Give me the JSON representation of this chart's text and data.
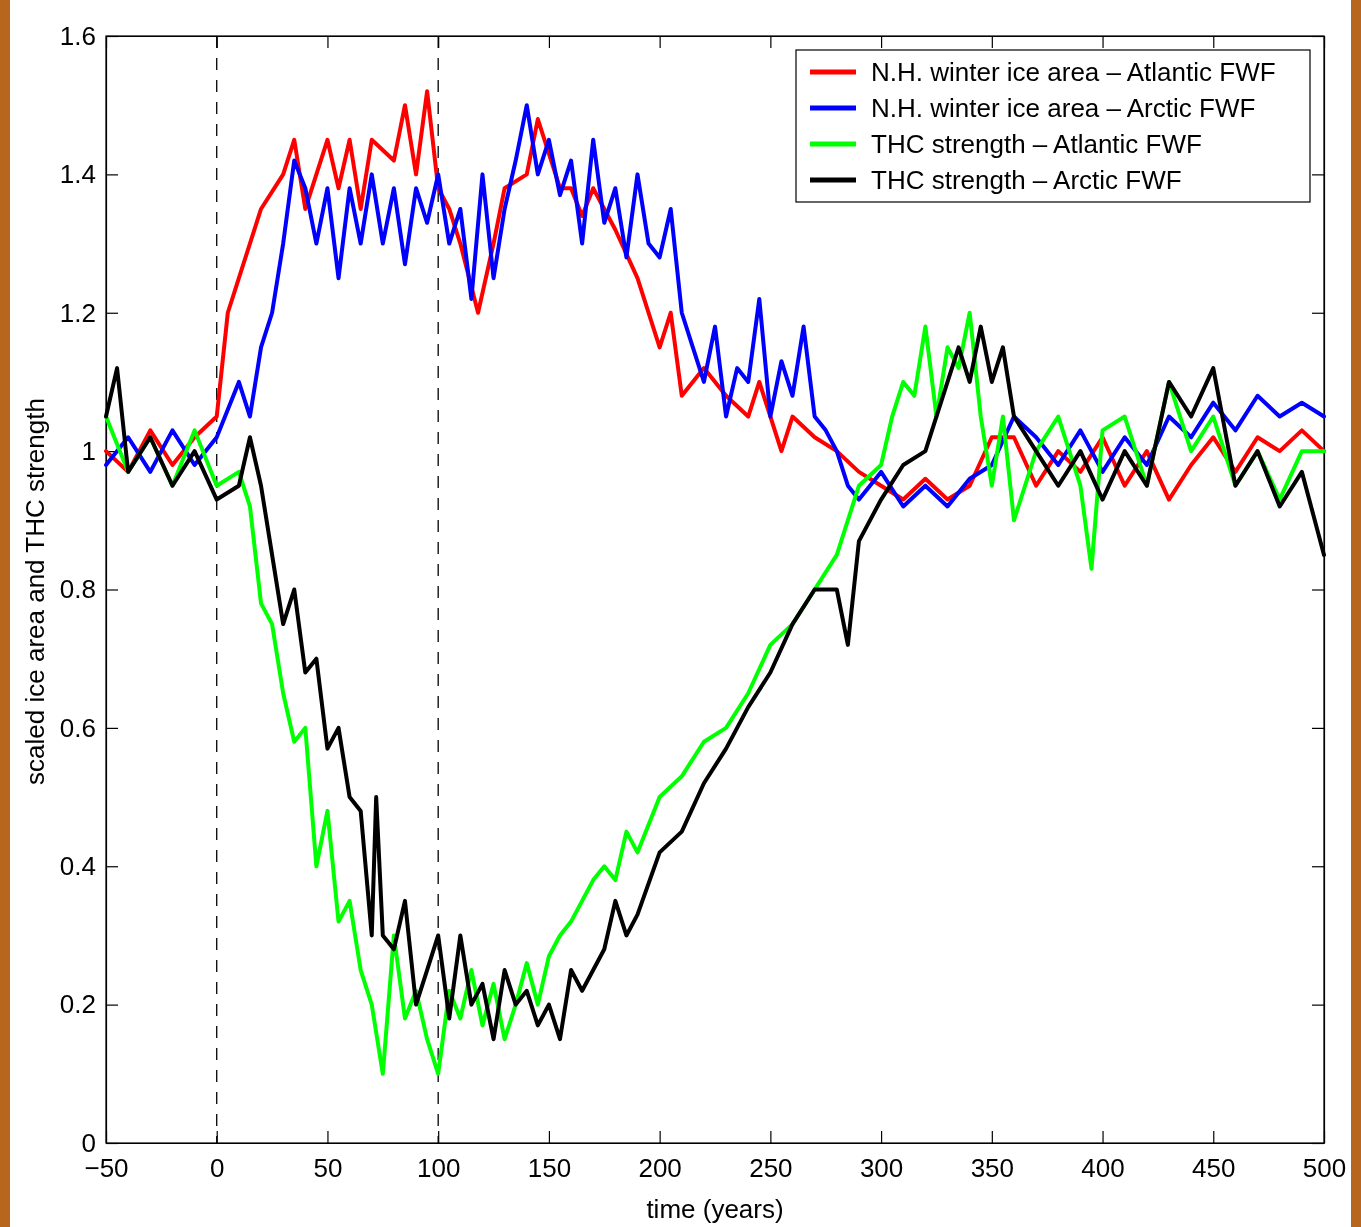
{
  "chart_data": {
    "type": "line",
    "xlabel": "time (years)",
    "ylabel": "scaled ice area and THC strength",
    "xlim": [
      -50,
      500
    ],
    "ylim": [
      0,
      1.6
    ],
    "xticks": [
      {
        "value": -50,
        "label": "−50"
      },
      0,
      50,
      100,
      150,
      200,
      250,
      300,
      350,
      400,
      450,
      500
    ],
    "yticks": [
      0,
      0.2,
      0.4,
      0.6,
      0.8,
      1,
      1.2,
      1.4,
      1.6
    ],
    "grid": false,
    "legend": "top right",
    "marker": "none",
    "line_style": "solid",
    "ref_lines": [
      {
        "axis": "x",
        "value": 0,
        "color": "#000000",
        "line_style": "dashed"
      },
      {
        "axis": "x",
        "value": 100,
        "color": "#000000",
        "line_style": "dashed"
      }
    ],
    "series": [
      {
        "name": "N.H. winter ice area – Atlantic FWF",
        "color": "#ff0000",
        "x": [
          -50,
          -40,
          -30,
          -20,
          -10,
          0,
          5,
          10,
          20,
          30,
          35,
          40,
          50,
          55,
          60,
          65,
          70,
          80,
          85,
          90,
          95,
          100,
          105,
          110,
          118,
          125,
          130,
          140,
          145,
          155,
          160,
          165,
          170,
          180,
          190,
          200,
          205,
          210,
          220,
          230,
          240,
          245,
          255,
          260,
          270,
          280,
          290,
          300,
          310,
          320,
          330,
          340,
          350,
          360,
          370,
          380,
          390,
          400,
          410,
          420,
          430,
          440,
          450,
          460,
          470,
          480,
          490,
          500
        ],
        "values": [
          1,
          0.97,
          1.03,
          0.98,
          1.02,
          1.05,
          1.2,
          1.25,
          1.35,
          1.4,
          1.45,
          1.35,
          1.45,
          1.38,
          1.45,
          1.35,
          1.45,
          1.42,
          1.5,
          1.4,
          1.52,
          1.38,
          1.35,
          1.3,
          1.2,
          1.3,
          1.38,
          1.4,
          1.48,
          1.38,
          1.38,
          1.34,
          1.38,
          1.32,
          1.25,
          1.15,
          1.2,
          1.08,
          1.12,
          1.08,
          1.05,
          1.1,
          1,
          1.05,
          1.02,
          1,
          0.97,
          0.95,
          0.93,
          0.96,
          0.93,
          0.95,
          1.02,
          1.02,
          0.95,
          1,
          0.97,
          1.02,
          0.95,
          1,
          0.93,
          0.98,
          1.02,
          0.97,
          1.02,
          1,
          1.03,
          1
        ]
      },
      {
        "name": "N.H. winter ice area – Arctic FWF",
        "color": "#0000ff",
        "x": [
          -50,
          -40,
          -30,
          -20,
          -10,
          0,
          10,
          15,
          20,
          25,
          30,
          35,
          40,
          45,
          50,
          55,
          60,
          65,
          70,
          75,
          80,
          85,
          90,
          95,
          100,
          105,
          110,
          115,
          120,
          125,
          130,
          135,
          140,
          145,
          150,
          155,
          160,
          165,
          170,
          175,
          180,
          185,
          190,
          195,
          200,
          205,
          210,
          215,
          220,
          225,
          230,
          235,
          240,
          245,
          250,
          255,
          260,
          265,
          270,
          275,
          280,
          285,
          290,
          300,
          310,
          320,
          330,
          340,
          350,
          360,
          370,
          380,
          390,
          400,
          410,
          420,
          430,
          440,
          450,
          460,
          470,
          480,
          490,
          500
        ],
        "values": [
          0.98,
          1.02,
          0.97,
          1.03,
          0.98,
          1.02,
          1.1,
          1.05,
          1.15,
          1.2,
          1.3,
          1.42,
          1.38,
          1.3,
          1.38,
          1.25,
          1.38,
          1.3,
          1.4,
          1.3,
          1.38,
          1.27,
          1.38,
          1.33,
          1.4,
          1.3,
          1.35,
          1.22,
          1.4,
          1.25,
          1.35,
          1.42,
          1.5,
          1.4,
          1.45,
          1.37,
          1.42,
          1.3,
          1.45,
          1.33,
          1.38,
          1.28,
          1.4,
          1.3,
          1.28,
          1.35,
          1.2,
          1.15,
          1.1,
          1.18,
          1.05,
          1.12,
          1.1,
          1.22,
          1.05,
          1.13,
          1.08,
          1.18,
          1.05,
          1.03,
          1,
          0.95,
          0.93,
          0.97,
          0.92,
          0.95,
          0.92,
          0.96,
          0.98,
          1.05,
          1.02,
          0.98,
          1.03,
          0.97,
          1.02,
          0.98,
          1.05,
          1.02,
          1.07,
          1.03,
          1.08,
          1.05,
          1.07,
          1.05
        ]
      },
      {
        "name": "THC strength – Atlantic FWF",
        "color": "#00ff00",
        "x": [
          -50,
          -40,
          -30,
          -20,
          -10,
          0,
          10,
          15,
          20,
          25,
          30,
          35,
          40,
          45,
          50,
          55,
          60,
          65,
          70,
          75,
          80,
          85,
          90,
          95,
          100,
          105,
          110,
          115,
          120,
          125,
          130,
          135,
          140,
          145,
          150,
          155,
          160,
          165,
          170,
          175,
          180,
          185,
          190,
          200,
          210,
          220,
          230,
          240,
          250,
          260,
          270,
          280,
          290,
          300,
          305,
          310,
          315,
          320,
          325,
          330,
          335,
          340,
          345,
          350,
          355,
          360,
          370,
          380,
          390,
          395,
          400,
          410,
          420,
          430,
          440,
          450,
          460,
          470,
          480,
          490,
          500
        ],
        "values": [
          1.05,
          0.97,
          1.02,
          0.95,
          1.03,
          0.95,
          0.97,
          0.92,
          0.78,
          0.75,
          0.65,
          0.58,
          0.6,
          0.4,
          0.48,
          0.32,
          0.35,
          0.25,
          0.2,
          0.1,
          0.3,
          0.18,
          0.22,
          0.15,
          0.1,
          0.22,
          0.18,
          0.25,
          0.17,
          0.23,
          0.15,
          0.2,
          0.26,
          0.2,
          0.27,
          0.3,
          0.32,
          0.35,
          0.38,
          0.4,
          0.38,
          0.45,
          0.42,
          0.5,
          0.53,
          0.58,
          0.6,
          0.65,
          0.72,
          0.75,
          0.8,
          0.85,
          0.95,
          0.98,
          1.05,
          1.1,
          1.08,
          1.18,
          1.05,
          1.15,
          1.12,
          1.2,
          1.05,
          0.95,
          1.05,
          0.9,
          1,
          1.05,
          0.95,
          0.83,
          1.03,
          1.05,
          0.95,
          1.1,
          1,
          1.05,
          0.95,
          1,
          0.93,
          1,
          1
        ]
      },
      {
        "name": "THC strength – Arctic FWF",
        "color": "#000000",
        "x": [
          -50,
          -45,
          -40,
          -30,
          -20,
          -10,
          0,
          10,
          15,
          20,
          25,
          30,
          35,
          40,
          45,
          50,
          55,
          60,
          65,
          70,
          72,
          75,
          80,
          85,
          90,
          95,
          100,
          105,
          110,
          115,
          120,
          125,
          130,
          135,
          140,
          145,
          150,
          155,
          160,
          165,
          170,
          175,
          180,
          185,
          190,
          200,
          210,
          220,
          230,
          240,
          250,
          260,
          270,
          280,
          285,
          290,
          300,
          310,
          320,
          330,
          335,
          340,
          345,
          350,
          355,
          360,
          370,
          380,
          390,
          400,
          410,
          420,
          430,
          440,
          450,
          460,
          470,
          480,
          490,
          500
        ],
        "values": [
          1.05,
          1.12,
          0.97,
          1.02,
          0.95,
          1,
          0.93,
          0.95,
          1.02,
          0.95,
          0.85,
          0.75,
          0.8,
          0.68,
          0.7,
          0.57,
          0.6,
          0.5,
          0.48,
          0.3,
          0.5,
          0.3,
          0.28,
          0.35,
          0.2,
          0.25,
          0.3,
          0.18,
          0.3,
          0.2,
          0.23,
          0.15,
          0.25,
          0.2,
          0.22,
          0.17,
          0.2,
          0.15,
          0.25,
          0.22,
          0.25,
          0.28,
          0.35,
          0.3,
          0.33,
          0.42,
          0.45,
          0.52,
          0.57,
          0.63,
          0.68,
          0.75,
          0.8,
          0.8,
          0.72,
          0.87,
          0.93,
          0.98,
          1,
          1.1,
          1.15,
          1.1,
          1.18,
          1.1,
          1.15,
          1.05,
          1,
          0.95,
          1,
          0.93,
          1,
          0.95,
          1.1,
          1.05,
          1.12,
          0.95,
          1,
          0.92,
          0.97,
          0.85
        ]
      }
    ]
  }
}
